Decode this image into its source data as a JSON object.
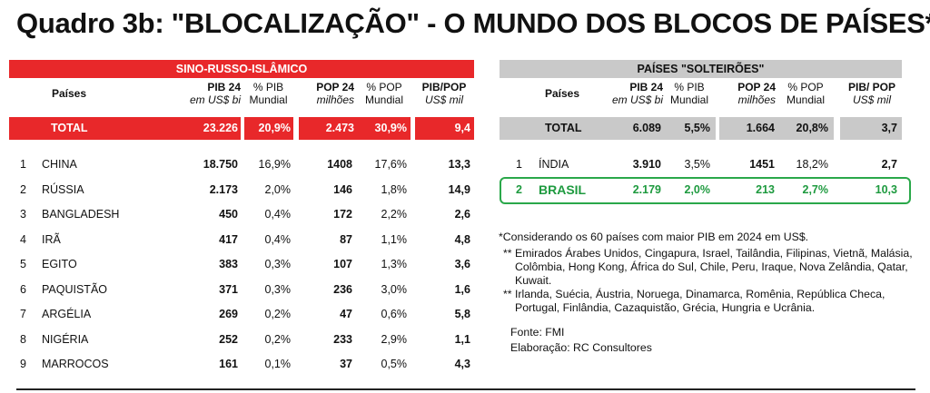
{
  "title": "Quadro 3b: \"BLOCALIZAÇÃO\" - O MUNDO DOS BLOCOS DE PAÍSES*",
  "left_table": {
    "heading": "SINO-RUSSO-ISLÂMICO",
    "headers": {
      "paises": "Países",
      "pib": "PIB 24",
      "pib_unit": "em US$ bi",
      "pct_pib": "% PIB",
      "pct_pib_sub": "Mundial",
      "pop": "POP 24",
      "pop_unit": "milhões",
      "pct_pop": "% POP",
      "pct_pop_sub": "Mundial",
      "pib_pop": "PIB/POP",
      "pib_pop_unit": "US$ mil"
    },
    "total": {
      "label": "TOTAL",
      "pib": "23.226",
      "pct_pib": "20,9%",
      "pop": "2.473",
      "pct_pop": "30,9%",
      "pib_pop": "9,4"
    },
    "rows": [
      {
        "n": "1",
        "name": "CHINA",
        "pib": "18.750",
        "pct_pib": "16,9%",
        "pop": "1408",
        "pct_pop": "17,6%",
        "pib_pop": "13,3"
      },
      {
        "n": "2",
        "name": "RÚSSIA",
        "pib": "2.173",
        "pct_pib": "2,0%",
        "pop": "146",
        "pct_pop": "1,8%",
        "pib_pop": "14,9"
      },
      {
        "n": "3",
        "name": "BANGLADESH",
        "pib": "450",
        "pct_pib": "0,4%",
        "pop": "172",
        "pct_pop": "2,2%",
        "pib_pop": "2,6"
      },
      {
        "n": "4",
        "name": "IRÃ",
        "pib": "417",
        "pct_pib": "0,4%",
        "pop": "87",
        "pct_pop": "1,1%",
        "pib_pop": "4,8"
      },
      {
        "n": "5",
        "name": "EGITO",
        "pib": "383",
        "pct_pib": "0,3%",
        "pop": "107",
        "pct_pop": "1,3%",
        "pib_pop": "3,6"
      },
      {
        "n": "6",
        "name": "PAQUISTÃO",
        "pib": "371",
        "pct_pib": "0,3%",
        "pop": "236",
        "pct_pop": "3,0%",
        "pib_pop": "1,6"
      },
      {
        "n": "7",
        "name": "ARGÉLIA",
        "pib": "269",
        "pct_pib": "0,2%",
        "pop": "47",
        "pct_pop": "0,6%",
        "pib_pop": "5,8"
      },
      {
        "n": "8",
        "name": "NIGÉRIA",
        "pib": "252",
        "pct_pib": "0,2%",
        "pop": "233",
        "pct_pop": "2,9%",
        "pib_pop": "1,1"
      },
      {
        "n": "9",
        "name": "MARROCOS",
        "pib": "161",
        "pct_pib": "0,1%",
        "pop": "37",
        "pct_pop": "0,5%",
        "pib_pop": "4,3"
      }
    ]
  },
  "right_table": {
    "heading": "PAÍSES \"SOLTEIRÕES\"",
    "headers": {
      "paises": "Países",
      "pib": "PIB 24",
      "pib_unit": "em US$ bi",
      "pct_pib": "% PIB",
      "pct_pib_sub": "Mundial",
      "pop": "POP 24",
      "pop_unit": "milhões",
      "pct_pop": "% POP",
      "pct_pop_sub": "Mundial",
      "pib_pop": "PIB/ POP",
      "pib_pop_unit": "US$ mil"
    },
    "total": {
      "label": "TOTAL",
      "pib": "6.089",
      "pct_pib": "5,5%",
      "pop": "1.664",
      "pct_pop": "20,8%",
      "pib_pop": "3,7"
    },
    "rows": [
      {
        "n": "1",
        "name": "ÍNDIA",
        "pib": "3.910",
        "pct_pib": "3,5%",
        "pop": "1451",
        "pct_pop": "18,2%",
        "pib_pop": "2,7"
      },
      {
        "n": "2",
        "name": "BRASIL",
        "pib": "2.179",
        "pct_pib": "2,0%",
        "pop": "213",
        "pct_pop": "2,7%",
        "pib_pop": "10,3"
      }
    ]
  },
  "notes": {
    "n1": "*Considerando os 60 países com maior PIB em 2024 em US$.",
    "n2": "** Emirados Árabes Unidos, Cingapura, Israel, Tailândia, Filipinas, Vietnã, Malásia, Colômbia, Hong Kong, África do Sul, Chile, Peru, Iraque, Nova Zelândia, Qatar, Kuwait.",
    "n3": "** Irlanda, Suécia, Áustria, Noruega, Dinamarca, Romênia, República Checa, Portugal, Finlândia, Cazaquistão, Grécia, Hungria e Ucrânia.",
    "source": "Fonte: FMI",
    "author": "Elaboração: RC Consultores"
  },
  "colors": {
    "red": "#e8282a",
    "grey": "#c9c9c9",
    "green": "#1e9a3f"
  }
}
